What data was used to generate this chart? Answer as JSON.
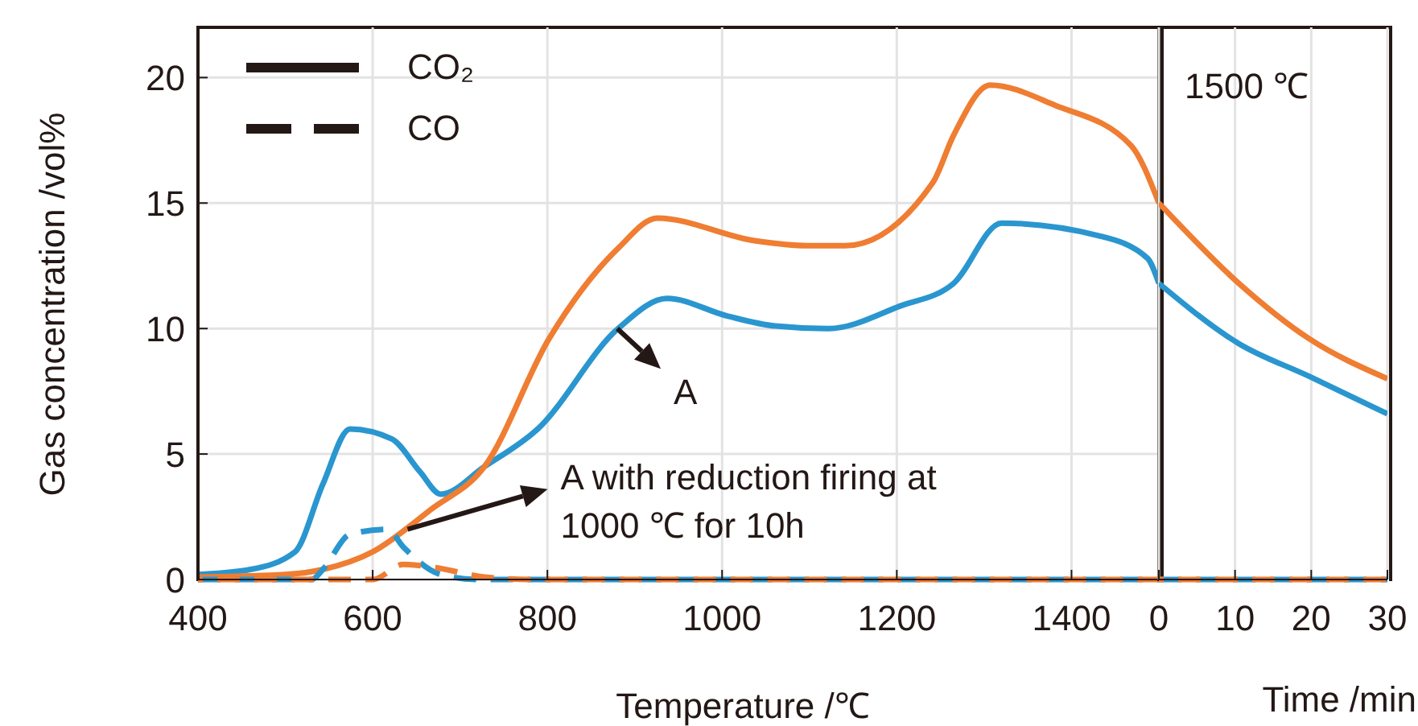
{
  "chart_data": [
    {
      "type": "line",
      "xlabel": "Temperature /℃",
      "ylabel": "Gas concentration /vol%",
      "xlim": [
        400,
        1500
      ],
      "xticks": [
        400,
        600,
        800,
        1000,
        1200,
        1400
      ],
      "ylim": [
        0,
        22
      ],
      "yticks": [
        0,
        5,
        10,
        15,
        20
      ],
      "grid": true,
      "annotations": [
        "CO₂",
        "CO",
        {
          "text": "A",
          "x": 880,
          "y": 10
        },
        {
          "text": "A with reduction firing at 1000 ℃ for 10h",
          "x": 640,
          "y": 2
        }
      ],
      "series": [
        {
          "color": "#2a96cf",
          "line_style": "solid",
          "x": [
            400,
            460,
            511,
            543,
            574,
            622,
            654,
            678,
            728,
            789,
            881,
            937,
            1006,
            1061,
            1122,
            1204,
            1265,
            1320,
            1431,
            1487,
            1500
          ],
          "values": [
            0.2,
            0.4,
            1.1,
            3.8,
            6.0,
            5.6,
            4.3,
            3.4,
            4.5,
            6.0,
            10.0,
            11.2,
            10.5,
            10.1,
            10.0,
            10.9,
            11.8,
            14.2,
            13.7,
            12.8,
            11.8
          ]
        },
        {
          "color": "#ef7d32",
          "line_style": "solid",
          "x": [
            400,
            500,
            543,
            600,
            667,
            728,
            802,
            881,
            926,
            1037,
            1098,
            1141,
            1241,
            1265,
            1307,
            1381,
            1468,
            1500
          ],
          "values": [
            0.1,
            0.2,
            0.4,
            1.1,
            2.8,
            4.5,
            9.6,
            13.2,
            14.4,
            13.5,
            13.3,
            13.3,
            15.8,
            17.7,
            19.7,
            18.9,
            17.3,
            15.0
          ]
        },
        {
          "color": "#2a96cf",
          "line_style": "dashed",
          "x": [
            400,
            530,
            543,
            574,
            617,
            635,
            678,
            720,
            1500
          ],
          "values": [
            0,
            0,
            0.4,
            1.8,
            2.0,
            1.3,
            0.2,
            0,
            0
          ]
        },
        {
          "color": "#ef7d32",
          "line_style": "dashed",
          "x": [
            400,
            600,
            635,
            667,
            728,
            780,
            1500
          ],
          "values": [
            0,
            0,
            0.6,
            0.5,
            0.1,
            0,
            0
          ]
        }
      ]
    },
    {
      "type": "line",
      "xlabel": "Time /min",
      "xlim": [
        0,
        30
      ],
      "xticks": [
        0,
        10,
        20,
        30
      ],
      "ylim": [
        0,
        22
      ],
      "yticks": [
        0,
        5,
        10,
        15,
        20
      ],
      "grid": true,
      "tick_labels": "x",
      "annotations": [
        "1500 ℃"
      ],
      "series": [
        {
          "color": "#2a96cf",
          "line_style": "solid",
          "x": [
            0,
            10.5,
            19.7,
            30
          ],
          "values": [
            11.8,
            9.4,
            8.1,
            6.6
          ]
        },
        {
          "color": "#ef7d32",
          "line_style": "solid",
          "x": [
            0,
            10.5,
            19.7,
            30
          ],
          "values": [
            15.0,
            11.8,
            9.6,
            8.0
          ]
        },
        {
          "color": "#2a96cf",
          "line_style": "dashed",
          "x": [
            0,
            30
          ],
          "values": [
            0,
            0
          ]
        },
        {
          "color": "#ef7d32",
          "line_style": "dashed",
          "x": [
            0,
            30
          ],
          "values": [
            0,
            0
          ]
        }
      ]
    }
  ]
}
